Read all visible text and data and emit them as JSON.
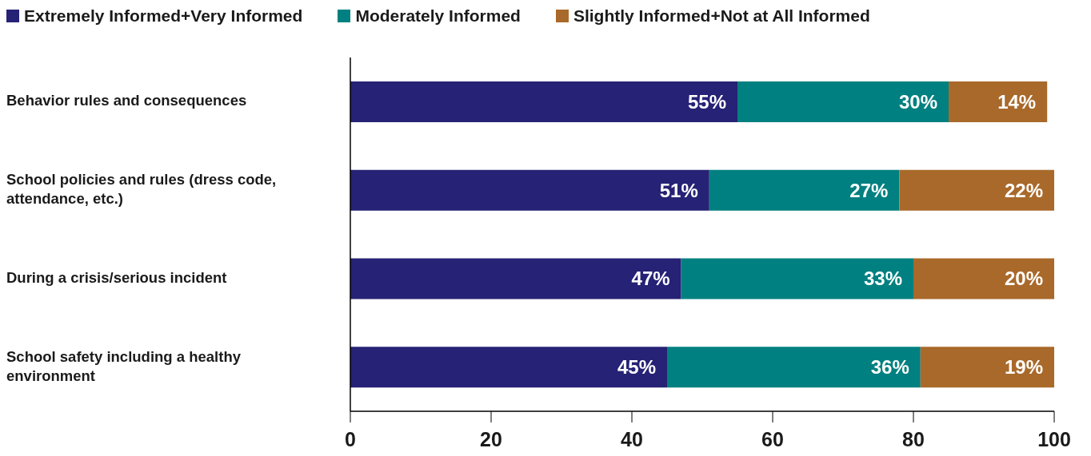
{
  "chart_data": {
    "type": "bar",
    "orientation": "horizontal",
    "stacked": true,
    "legend": "top left",
    "grid": false,
    "categories": [
      "Behavior rules and consequences",
      "School policies and rules (dress code, attendance, etc.)",
      "During a crisis/serious incident",
      "School safety including a healthy environment"
    ],
    "xlim": [
      0,
      100
    ],
    "xticks": [
      0,
      20,
      40,
      60,
      80,
      100
    ],
    "series": [
      {
        "name": "Extremely Informed+Very Informed",
        "color": "#262275",
        "values": [
          55,
          51,
          47,
          45
        ],
        "value_labels": [
          "55%",
          "51%",
          "47%",
          "45%"
        ]
      },
      {
        "name": "Moderately Informed",
        "color": "#008080",
        "values": [
          30,
          27,
          33,
          36
        ],
        "value_labels": [
          "30%",
          "27%",
          "33%",
          "36%"
        ]
      },
      {
        "name": "Slightly Informed+Not at All Informed",
        "color": "#a9692a",
        "values": [
          14,
          22,
          20,
          19
        ],
        "value_labels": [
          "14%",
          "22%",
          "20%",
          "19%"
        ]
      }
    ]
  }
}
